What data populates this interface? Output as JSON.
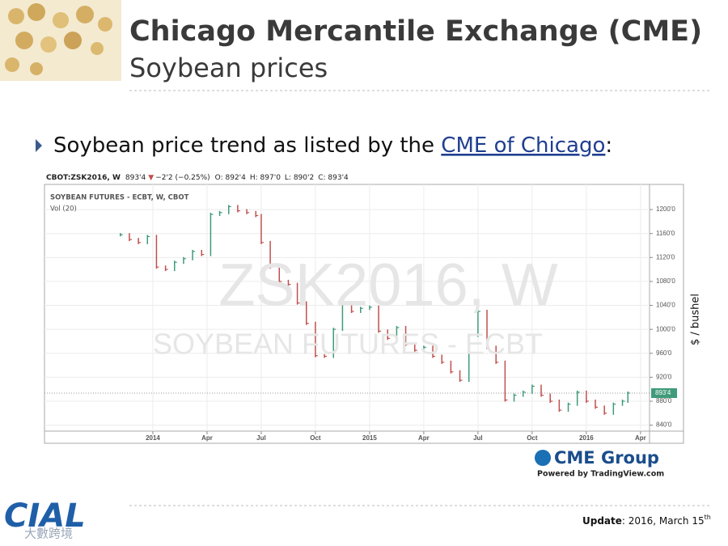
{
  "slide": {
    "title": "Chicago Mercantile Exchange (CME)",
    "subtitle": "Soybean prices",
    "bullet": "Soybean price trend as listed by the ",
    "link": "CME of Chicago",
    "bullet_end": ":",
    "cme_logo": "CME Group",
    "powered": "Powered by TradingView.com",
    "update_label": "Update",
    "update_text": ": 2016, March 15",
    "update_sup": "th",
    "org_logo": "CIAL",
    "org_sub": "大數跨境"
  },
  "chart_data": {
    "type": "price",
    "header": {
      "symbol": "CBOT:ZSK2016, W",
      "last": "893'4",
      "change": "−2'2 (−0.25%)",
      "open": "O: 892'4",
      "high": "H: 897'0",
      "low": "L: 890'2",
      "close": "C: 893'4"
    },
    "legend_title": "SOYBEAN FUTURES - ECBT, W, CBOT",
    "legend_sub": "Vol (20)",
    "watermark": "ZSK2016, W",
    "watermark_sub": "SOYBEAN FUTURES - ECBT",
    "ylabel": "$ / bushel",
    "up_color": "#3f9b7a",
    "down_color": "#c0504d",
    "x": [
      -1.8,
      -1.3,
      -0.8,
      -0.3,
      0.2,
      0.7,
      1.2,
      1.7,
      2.2,
      2.7,
      3.2,
      3.7,
      4.2,
      4.7,
      5.2,
      5.7,
      6.0,
      6.5,
      7.0,
      7.5,
      8.0,
      8.5,
      9.0,
      9.5,
      10.0,
      10.5,
      11.0,
      11.5,
      12.0,
      12.5,
      13.0,
      13.5,
      14.0,
      14.5,
      15.0,
      15.5,
      16.0,
      16.5,
      17.0,
      17.5,
      18.0,
      18.5,
      19.0,
      19.5,
      20.0,
      20.5,
      21.0,
      21.5,
      22.0,
      22.5,
      23.0,
      23.5,
      24.0,
      24.5,
      25.0,
      25.5,
      26.0,
      26.3
    ],
    "values": [
      1158,
      1150,
      1145,
      1155,
      1104,
      1100,
      1112,
      1118,
      1130,
      1125,
      1192,
      1195,
      1205,
      1198,
      1195,
      1190,
      1145,
      1104,
      1080,
      1075,
      1044,
      1010,
      956,
      955,
      1000,
      1044,
      1030,
      1035,
      1037,
      997,
      985,
      1003,
      975,
      965,
      970,
      955,
      945,
      929,
      915,
      990,
      1030,
      970,
      945,
      882,
      890,
      895,
      905,
      890,
      880,
      865,
      875,
      895,
      880,
      870,
      860,
      875,
      880,
      893.5
    ],
    "last_price": {
      "value": 893.5,
      "label": "893'4"
    },
    "xlim": [
      -6,
      27.5
    ],
    "ylim": [
      830,
      1242
    ],
    "xticks": [
      {
        "value": 0,
        "label": "2014"
      },
      {
        "value": 3,
        "label": "Apr"
      },
      {
        "value": 6,
        "label": "Jul"
      },
      {
        "value": 9,
        "label": "Oct"
      },
      {
        "value": 12,
        "label": "2015"
      },
      {
        "value": 15,
        "label": "Apr"
      },
      {
        "value": 18,
        "label": "Jul"
      },
      {
        "value": 21,
        "label": "Oct"
      },
      {
        "value": 24,
        "label": "2016"
      },
      {
        "value": 27,
        "label": "Apr"
      }
    ],
    "yticks": [
      {
        "value": 840,
        "label": "840'0"
      },
      {
        "value": 880,
        "label": "880'0"
      },
      {
        "value": 920,
        "label": "920'0"
      },
      {
        "value": 960,
        "label": "960'0"
      },
      {
        "value": 1000,
        "label": "1000'0"
      },
      {
        "value": 1040,
        "label": "1040'0"
      },
      {
        "value": 1080,
        "label": "1080'0"
      },
      {
        "value": 1120,
        "label": "1120'0"
      },
      {
        "value": 1160,
        "label": "1160'0"
      },
      {
        "value": 1200,
        "label": "1200'0"
      }
    ],
    "grid": true
  }
}
